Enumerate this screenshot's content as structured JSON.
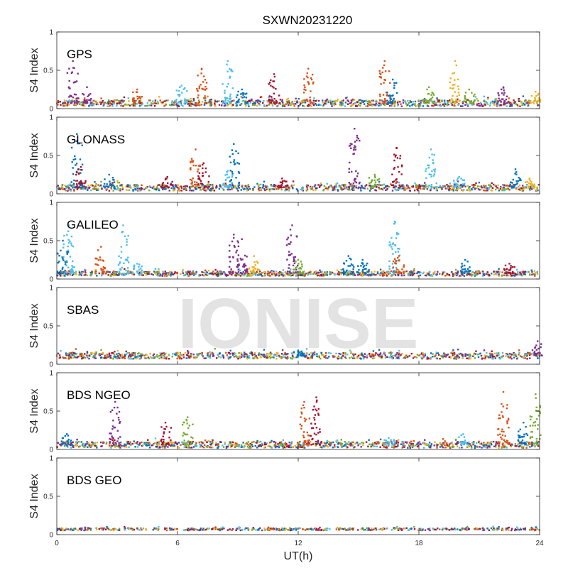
{
  "chart_data": {
    "type": "scatter",
    "title": "SXWN20231220",
    "xlabel": "UT(h)",
    "ylabel": "S4 Index",
    "xlim": [
      0,
      24
    ],
    "ylim": [
      0,
      1
    ],
    "x_ticks": [
      0,
      6,
      12,
      18,
      24
    ],
    "y_ticks": [
      0,
      0.5,
      1
    ],
    "x_tick_labels": [
      "0",
      "6",
      "12",
      "18",
      "24"
    ],
    "y_tick_labels": [
      "0",
      "0.5",
      "1"
    ],
    "grid": false,
    "legend": "none",
    "watermark": "IONISE",
    "colors": [
      "#0072BD",
      "#D95319",
      "#EDB120",
      "#7E2F8E",
      "#77AC30",
      "#4DBEEE",
      "#A2142F"
    ],
    "panels": [
      {
        "label": "GPS",
        "baseline": 0.07,
        "spread": 0.04,
        "bursts": [
          {
            "t": 0.8,
            "peak": 0.62,
            "color": 3
          },
          {
            "t": 1.5,
            "peak": 0.28,
            "color": 3
          },
          {
            "t": 4.0,
            "peak": 0.25,
            "color": 1
          },
          {
            "t": 6.2,
            "peak": 0.3,
            "color": 5
          },
          {
            "t": 7.2,
            "peak": 0.52,
            "color": 1
          },
          {
            "t": 8.5,
            "peak": 0.62,
            "color": 5
          },
          {
            "t": 9.2,
            "peak": 0.25,
            "color": 0
          },
          {
            "t": 10.8,
            "peak": 0.45,
            "color": 6
          },
          {
            "t": 12.5,
            "peak": 0.52,
            "color": 1
          },
          {
            "t": 16.3,
            "peak": 0.62,
            "color": 1
          },
          {
            "t": 16.7,
            "peak": 0.38,
            "color": 0
          },
          {
            "t": 18.5,
            "peak": 0.28,
            "color": 4
          },
          {
            "t": 19.8,
            "peak": 0.62,
            "color": 2
          },
          {
            "t": 20.5,
            "peak": 0.25,
            "color": 4
          },
          {
            "t": 22.2,
            "peak": 0.28,
            "color": 3
          },
          {
            "t": 23.8,
            "peak": 0.22,
            "color": 2
          }
        ]
      },
      {
        "label": "GLONASS",
        "baseline": 0.08,
        "spread": 0.04,
        "bursts": [
          {
            "t": 1.0,
            "peak": 0.78,
            "color": 0
          },
          {
            "t": 1.2,
            "peak": 0.35,
            "color": 6
          },
          {
            "t": 2.6,
            "peak": 0.25,
            "color": 0
          },
          {
            "t": 5.5,
            "peak": 0.22,
            "color": 6
          },
          {
            "t": 6.9,
            "peak": 0.58,
            "color": 1
          },
          {
            "t": 7.3,
            "peak": 0.4,
            "color": 6
          },
          {
            "t": 8.8,
            "peak": 0.65,
            "color": 0
          },
          {
            "t": 8.5,
            "peak": 0.3,
            "color": 5
          },
          {
            "t": 11.2,
            "peak": 0.2,
            "color": 6
          },
          {
            "t": 14.8,
            "peak": 0.85,
            "color": 3
          },
          {
            "t": 15.8,
            "peak": 0.25,
            "color": 4
          },
          {
            "t": 16.9,
            "peak": 0.6,
            "color": 6
          },
          {
            "t": 18.6,
            "peak": 0.58,
            "color": 5
          },
          {
            "t": 20.0,
            "peak": 0.22,
            "color": 5
          },
          {
            "t": 22.8,
            "peak": 0.32,
            "color": 0
          },
          {
            "t": 23.5,
            "peak": 0.2,
            "color": 2
          }
        ]
      },
      {
        "label": "GALILEO",
        "baseline": 0.07,
        "spread": 0.03,
        "bursts": [
          {
            "t": 0.3,
            "peak": 0.5,
            "color": 0
          },
          {
            "t": 0.6,
            "peak": 0.7,
            "color": 5
          },
          {
            "t": 2.2,
            "peak": 0.42,
            "color": 1
          },
          {
            "t": 3.3,
            "peak": 0.7,
            "color": 5
          },
          {
            "t": 4.0,
            "peak": 0.2,
            "color": 5
          },
          {
            "t": 8.8,
            "peak": 0.58,
            "color": 3
          },
          {
            "t": 9.2,
            "peak": 0.52,
            "color": 3
          },
          {
            "t": 9.8,
            "peak": 0.3,
            "color": 2
          },
          {
            "t": 11.7,
            "peak": 0.7,
            "color": 3
          },
          {
            "t": 12.0,
            "peak": 0.25,
            "color": 4
          },
          {
            "t": 14.5,
            "peak": 0.3,
            "color": 0
          },
          {
            "t": 15.2,
            "peak": 0.25,
            "color": 0
          },
          {
            "t": 16.8,
            "peak": 0.75,
            "color": 5
          },
          {
            "t": 17.0,
            "peak": 0.3,
            "color": 1
          },
          {
            "t": 20.3,
            "peak": 0.25,
            "color": 0
          },
          {
            "t": 22.5,
            "peak": 0.2,
            "color": 6
          }
        ]
      },
      {
        "label": "SBAS",
        "baseline": 0.11,
        "spread": 0.04,
        "bursts": [
          {
            "t": 23.9,
            "peak": 0.3,
            "color": 3
          },
          {
            "t": 12.0,
            "peak": 0.18,
            "color": 0
          }
        ]
      },
      {
        "label": "BDS NGEO",
        "baseline": 0.06,
        "spread": 0.04,
        "bursts": [
          {
            "t": 0.5,
            "peak": 0.2,
            "color": 0
          },
          {
            "t": 2.9,
            "peak": 0.62,
            "color": 3
          },
          {
            "t": 5.4,
            "peak": 0.35,
            "color": 6
          },
          {
            "t": 6.5,
            "peak": 0.42,
            "color": 4
          },
          {
            "t": 12.3,
            "peak": 0.62,
            "color": 1
          },
          {
            "t": 12.9,
            "peak": 0.68,
            "color": 6
          },
          {
            "t": 16.5,
            "peak": 0.15,
            "color": 5
          },
          {
            "t": 20.2,
            "peak": 0.2,
            "color": 5
          },
          {
            "t": 22.2,
            "peak": 0.75,
            "color": 1
          },
          {
            "t": 23.2,
            "peak": 0.35,
            "color": 0
          },
          {
            "t": 23.8,
            "peak": 0.72,
            "color": 4
          }
        ]
      },
      {
        "label": "BDS GEO",
        "baseline": 0.07,
        "spread": 0.015,
        "bursts": []
      }
    ]
  }
}
